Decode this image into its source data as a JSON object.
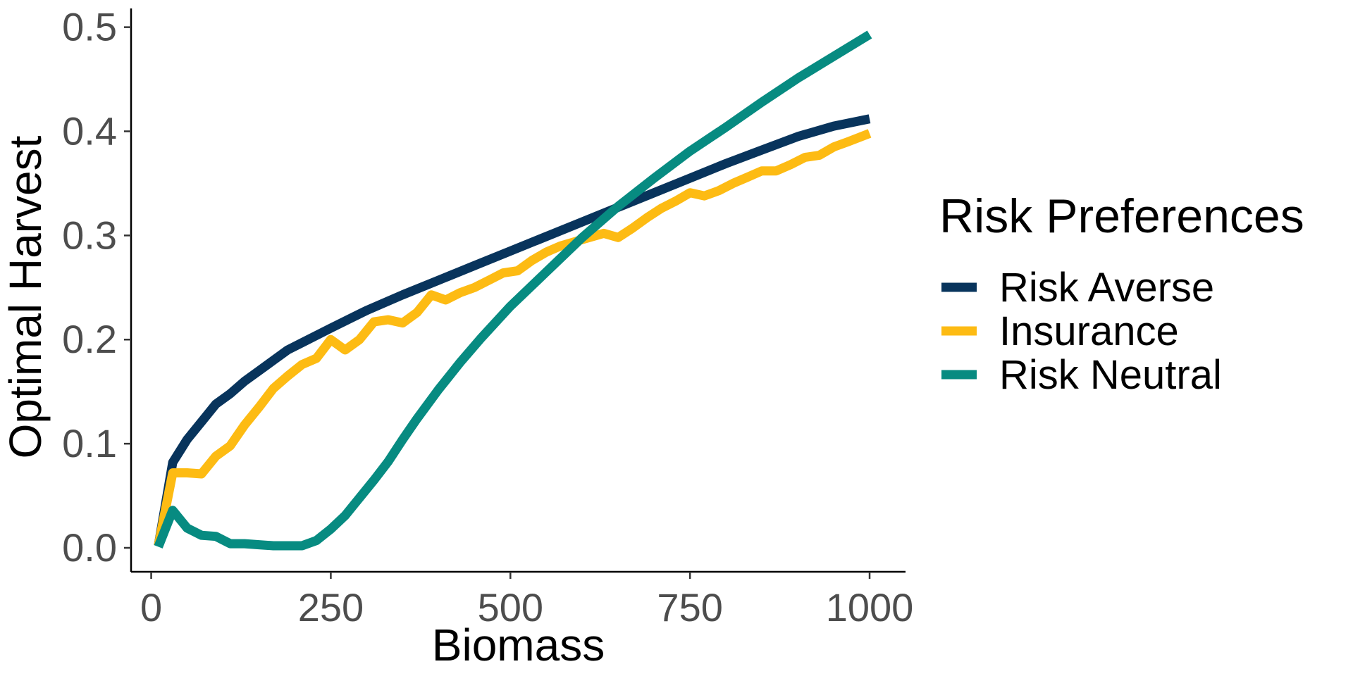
{
  "chart_data": {
    "type": "line",
    "title": "",
    "xlabel": "Biomass",
    "ylabel": "Optimal Harvest",
    "xlim": [
      -28,
      1050
    ],
    "ylim": [
      -0.023,
      0.518
    ],
    "xticks": [
      0,
      250,
      500,
      750,
      1000
    ],
    "xtick_labels": [
      "0",
      "250",
      "500",
      "750",
      "1000"
    ],
    "yticks": [
      0.0,
      0.1,
      0.2,
      0.3,
      0.4,
      0.5
    ],
    "ytick_labels": [
      "0.0",
      "0.1",
      "0.2",
      "0.3",
      "0.4",
      "0.5"
    ],
    "grid": false,
    "legend": {
      "title": "Risk Preferences",
      "position": "right"
    },
    "series": [
      {
        "name": "Risk Averse",
        "color": "#08345c",
        "x": [
          10,
          30,
          50,
          70,
          90,
          110,
          130,
          150,
          170,
          190,
          210,
          250,
          300,
          350,
          400,
          450,
          500,
          550,
          600,
          650,
          700,
          750,
          800,
          850,
          900,
          950,
          1000
        ],
        "y": [
          0.002,
          0.082,
          0.104,
          0.121,
          0.138,
          0.148,
          0.16,
          0.17,
          0.18,
          0.19,
          0.197,
          0.211,
          0.228,
          0.243,
          0.257,
          0.271,
          0.285,
          0.299,
          0.313,
          0.327,
          0.341,
          0.355,
          0.369,
          0.382,
          0.395,
          0.405,
          0.412
        ]
      },
      {
        "name": "Insurance",
        "color": "#fdbb13",
        "x": [
          10,
          30,
          50,
          70,
          90,
          110,
          130,
          150,
          170,
          190,
          210,
          230,
          250,
          270,
          290,
          310,
          330,
          350,
          370,
          390,
          410,
          430,
          450,
          470,
          490,
          510,
          530,
          550,
          570,
          590,
          610,
          630,
          650,
          670,
          690,
          710,
          730,
          750,
          770,
          790,
          810,
          830,
          850,
          870,
          890,
          910,
          930,
          950,
          970,
          1000
        ],
        "y": [
          0.002,
          0.072,
          0.072,
          0.071,
          0.088,
          0.098,
          0.118,
          0.135,
          0.153,
          0.165,
          0.176,
          0.182,
          0.2,
          0.19,
          0.2,
          0.217,
          0.219,
          0.216,
          0.226,
          0.243,
          0.238,
          0.245,
          0.25,
          0.257,
          0.264,
          0.266,
          0.276,
          0.284,
          0.29,
          0.294,
          0.298,
          0.302,
          0.298,
          0.307,
          0.317,
          0.326,
          0.333,
          0.341,
          0.338,
          0.343,
          0.35,
          0.356,
          0.362,
          0.362,
          0.368,
          0.375,
          0.377,
          0.385,
          0.39,
          0.398
        ]
      },
      {
        "name": "Risk Neutral",
        "color": "#078b81",
        "x": [
          10,
          30,
          50,
          70,
          90,
          110,
          130,
          150,
          170,
          190,
          210,
          230,
          250,
          270,
          290,
          310,
          330,
          350,
          370,
          400,
          430,
          460,
          500,
          550,
          600,
          650,
          700,
          750,
          800,
          850,
          900,
          950,
          1000
        ],
        "y": [
          0.001,
          0.036,
          0.019,
          0.012,
          0.011,
          0.004,
          0.004,
          0.003,
          0.002,
          0.002,
          0.002,
          0.007,
          0.018,
          0.031,
          0.048,
          0.065,
          0.083,
          0.104,
          0.124,
          0.152,
          0.178,
          0.202,
          0.232,
          0.265,
          0.298,
          0.328,
          0.355,
          0.381,
          0.404,
          0.428,
          0.451,
          0.472,
          0.493
        ]
      }
    ]
  }
}
